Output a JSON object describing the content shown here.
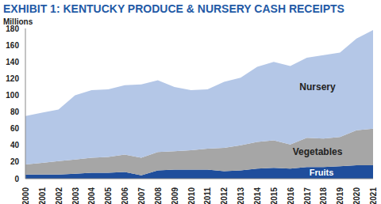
{
  "chart_data": {
    "type": "area",
    "title": "EXHIBIT 1: KENTUCKY PRODUCE & NURSERY CASH RECEIPTS",
    "y_label": "Millions",
    "categories": [
      "2000",
      "2001",
      "2002",
      "2003",
      "2004",
      "2005",
      "2006",
      "2007",
      "2008",
      "2009",
      "2010",
      "2011",
      "2012",
      "2013",
      "2014",
      "2015",
      "2016",
      "2017",
      "2018",
      "2019",
      "2020",
      "2021"
    ],
    "series": [
      {
        "name": "Fruits",
        "color": "#1f4e9c",
        "values": [
          5,
          5,
          5,
          6,
          7,
          7,
          8,
          4,
          10,
          11,
          11,
          11,
          9,
          10,
          12,
          13,
          12,
          14,
          14,
          15,
          16,
          16
        ]
      },
      {
        "name": "Vegetables",
        "color": "#a6a6a6",
        "values": [
          12,
          14,
          16,
          17,
          18,
          19,
          21,
          21,
          22,
          22,
          23,
          25,
          28,
          30,
          32,
          33,
          29,
          35,
          34,
          35,
          42,
          44
        ]
      },
      {
        "name": "Nursery",
        "color": "#b4c7e7",
        "values": [
          58,
          60,
          62,
          77,
          81,
          81,
          83,
          88,
          86,
          77,
          72,
          71,
          79,
          81,
          90,
          94,
          94,
          96,
          100,
          101,
          110,
          118
        ]
      }
    ],
    "ylim": [
      0,
      180
    ],
    "yticks": [
      0,
      20,
      40,
      60,
      80,
      100,
      120,
      140,
      160,
      180
    ],
    "stacked": true,
    "grid": false
  }
}
